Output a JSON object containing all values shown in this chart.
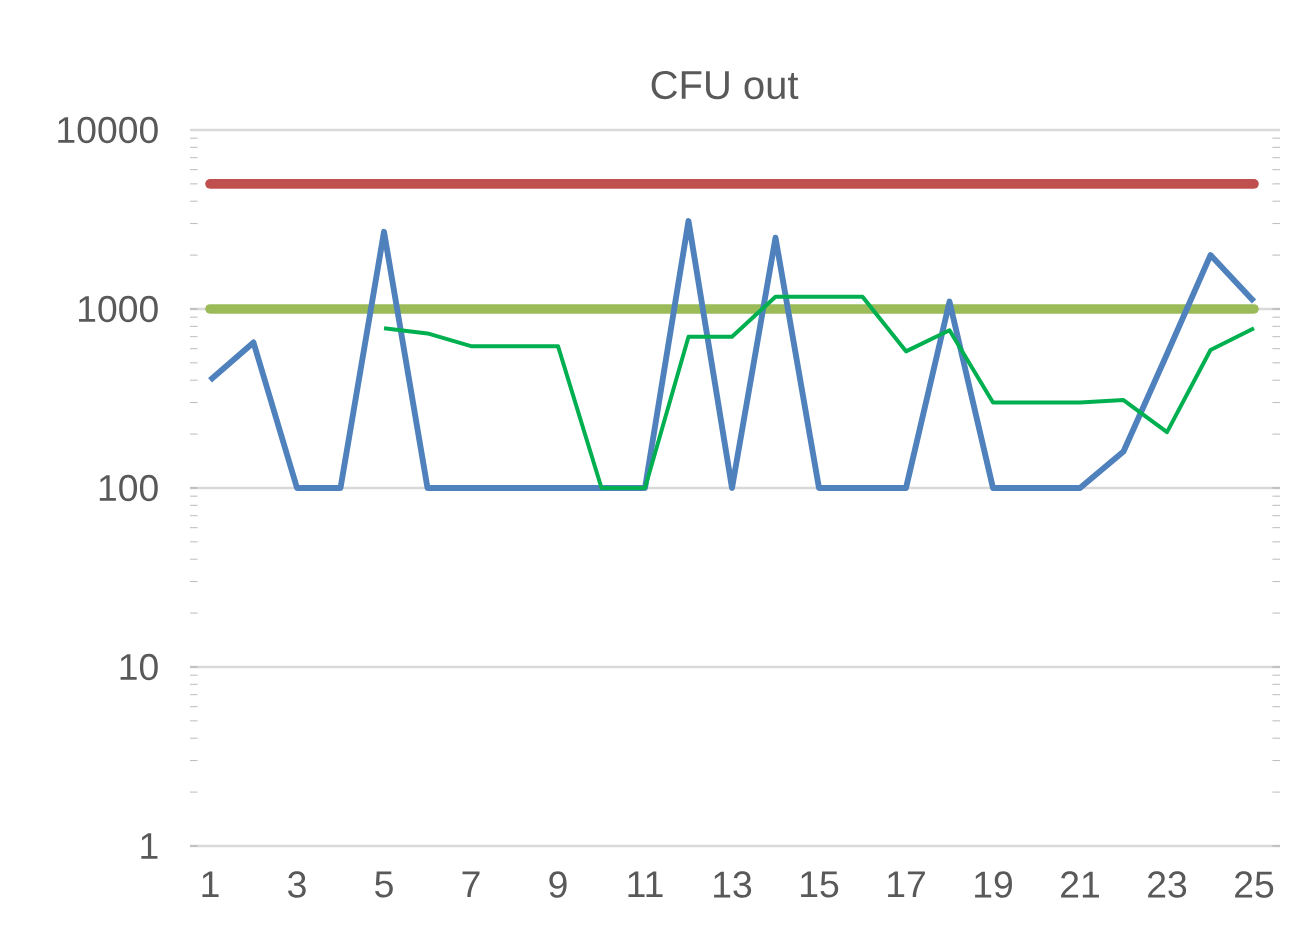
{
  "chart_data": {
    "type": "line",
    "title": "CFU out",
    "categories": [
      "1",
      null,
      "3",
      null,
      "5",
      null,
      "7",
      null,
      "9",
      null,
      "11",
      null,
      "13",
      null,
      "15",
      null,
      "17",
      null,
      "19",
      null,
      "21",
      null,
      "23",
      null,
      "25"
    ],
    "series": [
      {
        "color": "#c0504d",
        "values": [
          5000,
          5000,
          5000,
          5000,
          5000,
          5000,
          5000,
          5000,
          5000,
          5000,
          5000,
          5000,
          5000,
          5000,
          5000,
          5000,
          5000,
          5000,
          5000,
          5000,
          5000,
          5000,
          5000,
          5000,
          5000
        ]
      },
      {
        "color": "#9bbb59",
        "values": [
          1000,
          1000,
          1000,
          1000,
          1000,
          1000,
          1000,
          1000,
          1000,
          1000,
          1000,
          1000,
          1000,
          1000,
          1000,
          1000,
          1000,
          1000,
          1000,
          1000,
          1000,
          1000,
          1000,
          1000,
          1000
        ]
      },
      {
        "color": "#4f81bd",
        "values": [
          400,
          650,
          100,
          100,
          2700,
          100,
          100,
          100,
          100,
          100,
          100,
          3100,
          100,
          2500,
          100,
          100,
          100,
          1100,
          100,
          100,
          100,
          160,
          560,
          2000,
          1100
        ]
      },
      {
        "color": "#00b050",
        "values": [
          null,
          null,
          null,
          null,
          780,
          730,
          620,
          620,
          620,
          100,
          100,
          700,
          700,
          1170,
          1170,
          1170,
          580,
          760,
          300,
          300,
          300,
          310,
          205,
          590,
          780
        ]
      }
    ],
    "log": true,
    "ylim": [
      1,
      10000
    ],
    "yticks": [
      1,
      10,
      100,
      1000,
      10000
    ],
    "grid": "y",
    "marker": "none",
    "line_style": "solid"
  }
}
